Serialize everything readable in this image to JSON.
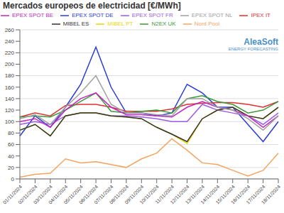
{
  "chart_data": {
    "type": "line",
    "title": "Mercados europeos de electricidad [€/MWh]",
    "annotations": [
      "AleaSoft",
      "ENERGY FORECASTING"
    ],
    "categories": [
      "01/11/2024",
      "02/11/2024",
      "03/11/2024",
      "04/11/2024",
      "05/11/2024",
      "06/11/2024",
      "07/11/2024",
      "08/11/2024",
      "09/11/2024",
      "10/11/2024",
      "11/11/2024",
      "12/11/2024",
      "13/11/2024",
      "14/11/2024",
      "15/11/2024",
      "16/11/2024",
      "17/11/2024",
      "18/11/2024"
    ],
    "series": [
      {
        "name": "EPEX SPOT DE",
        "color": "#2b3bd8",
        "values": [
          75,
          110,
          90,
          125,
          165,
          230,
          160,
          115,
          115,
          110,
          115,
          165,
          150,
          125,
          125,
          95,
          65,
          100
        ]
      },
      {
        "name": "EPEX SPOT FR",
        "color": "#9b5de5",
        "values": [
          95,
          100,
          95,
          110,
          115,
          115,
          110,
          110,
          108,
          105,
          100,
          100,
          130,
          120,
          115,
          110,
          95,
          115
        ]
      },
      {
        "name": "MIBEL PT",
        "color": "#e6d600",
        "values": [
          85,
          95,
          75,
          110,
          115,
          115,
          110,
          108,
          105,
          90,
          78,
          62,
          105,
          120,
          125,
          110,
          105,
          125
        ]
      },
      {
        "name": "MIBEL ES",
        "color": "#333333",
        "values": [
          85,
          95,
          75,
          110,
          115,
          115,
          110,
          108,
          105,
          90,
          78,
          65,
          105,
          120,
          125,
          110,
          105,
          125
        ]
      },
      {
        "name": "IPEX IT",
        "color": "#e03030",
        "values": [
          108,
          115,
          110,
          128,
          130,
          130,
          125,
          118,
          118,
          118,
          122,
          130,
          132,
          133,
          133,
          130,
          125,
          135
        ]
      },
      {
        "name": "N2EX UK",
        "color": "#3a9a3a",
        "values": [
          108,
          110,
          108,
          120,
          135,
          150,
          118,
          115,
          118,
          120,
          115,
          140,
          145,
          135,
          130,
          115,
          120,
          135
        ]
      },
      {
        "name": "EPEX SPOT BE",
        "color": "#c026c0",
        "values": [
          100,
          105,
          90,
          120,
          140,
          150,
          125,
          112,
          112,
          110,
          108,
          125,
          135,
          125,
          120,
          110,
          90,
          110
        ]
      },
      {
        "name": "EPEX SPOT NL",
        "color": "#a0a0a0",
        "values": [
          105,
          112,
          95,
          125,
          150,
          180,
          130,
          115,
          115,
          112,
          110,
          140,
          140,
          125,
          120,
          105,
          85,
          110
        ]
      },
      {
        "name": "Nord Pool",
        "color": "#f4a460",
        "values": [
          3,
          8,
          10,
          35,
          28,
          30,
          25,
          20,
          35,
          45,
          70,
          50,
          28,
          25,
          15,
          5,
          15,
          45
        ]
      }
    ],
    "ylim": [
      0,
      260
    ],
    "yticks": [
      0,
      20,
      40,
      60,
      80,
      100,
      120,
      140,
      160,
      180,
      200,
      220,
      240,
      260
    ],
    "grid": true,
    "legend": "top"
  }
}
